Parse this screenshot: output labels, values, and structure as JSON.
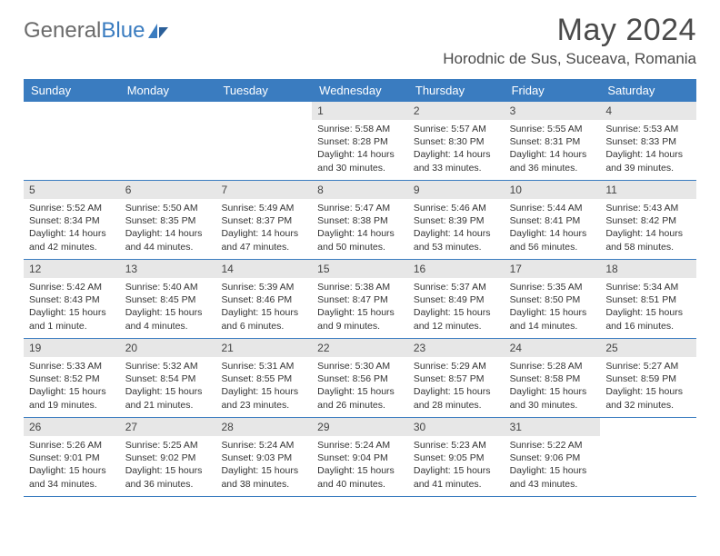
{
  "brand": {
    "part1": "General",
    "part2": "Blue"
  },
  "title": "May 2024",
  "location": "Horodnic de Sus, Suceava, Romania",
  "colors": {
    "header_bg": "#3a7cc0",
    "header_text": "#ffffff",
    "daynum_bg": "#e7e7e7",
    "body_text": "#333333",
    "title_text": "#4a4a4a",
    "week_border": "#3a7cc0",
    "page_bg": "#ffffff"
  },
  "weekdays": [
    "Sunday",
    "Monday",
    "Tuesday",
    "Wednesday",
    "Thursday",
    "Friday",
    "Saturday"
  ],
  "weeks": [
    [
      {
        "day": "",
        "sunrise": "",
        "sunset": "",
        "daylight": ""
      },
      {
        "day": "",
        "sunrise": "",
        "sunset": "",
        "daylight": ""
      },
      {
        "day": "",
        "sunrise": "",
        "sunset": "",
        "daylight": ""
      },
      {
        "day": "1",
        "sunrise": "Sunrise: 5:58 AM",
        "sunset": "Sunset: 8:28 PM",
        "daylight": "Daylight: 14 hours and 30 minutes."
      },
      {
        "day": "2",
        "sunrise": "Sunrise: 5:57 AM",
        "sunset": "Sunset: 8:30 PM",
        "daylight": "Daylight: 14 hours and 33 minutes."
      },
      {
        "day": "3",
        "sunrise": "Sunrise: 5:55 AM",
        "sunset": "Sunset: 8:31 PM",
        "daylight": "Daylight: 14 hours and 36 minutes."
      },
      {
        "day": "4",
        "sunrise": "Sunrise: 5:53 AM",
        "sunset": "Sunset: 8:33 PM",
        "daylight": "Daylight: 14 hours and 39 minutes."
      }
    ],
    [
      {
        "day": "5",
        "sunrise": "Sunrise: 5:52 AM",
        "sunset": "Sunset: 8:34 PM",
        "daylight": "Daylight: 14 hours and 42 minutes."
      },
      {
        "day": "6",
        "sunrise": "Sunrise: 5:50 AM",
        "sunset": "Sunset: 8:35 PM",
        "daylight": "Daylight: 14 hours and 44 minutes."
      },
      {
        "day": "7",
        "sunrise": "Sunrise: 5:49 AM",
        "sunset": "Sunset: 8:37 PM",
        "daylight": "Daylight: 14 hours and 47 minutes."
      },
      {
        "day": "8",
        "sunrise": "Sunrise: 5:47 AM",
        "sunset": "Sunset: 8:38 PM",
        "daylight": "Daylight: 14 hours and 50 minutes."
      },
      {
        "day": "9",
        "sunrise": "Sunrise: 5:46 AM",
        "sunset": "Sunset: 8:39 PM",
        "daylight": "Daylight: 14 hours and 53 minutes."
      },
      {
        "day": "10",
        "sunrise": "Sunrise: 5:44 AM",
        "sunset": "Sunset: 8:41 PM",
        "daylight": "Daylight: 14 hours and 56 minutes."
      },
      {
        "day": "11",
        "sunrise": "Sunrise: 5:43 AM",
        "sunset": "Sunset: 8:42 PM",
        "daylight": "Daylight: 14 hours and 58 minutes."
      }
    ],
    [
      {
        "day": "12",
        "sunrise": "Sunrise: 5:42 AM",
        "sunset": "Sunset: 8:43 PM",
        "daylight": "Daylight: 15 hours and 1 minute."
      },
      {
        "day": "13",
        "sunrise": "Sunrise: 5:40 AM",
        "sunset": "Sunset: 8:45 PM",
        "daylight": "Daylight: 15 hours and 4 minutes."
      },
      {
        "day": "14",
        "sunrise": "Sunrise: 5:39 AM",
        "sunset": "Sunset: 8:46 PM",
        "daylight": "Daylight: 15 hours and 6 minutes."
      },
      {
        "day": "15",
        "sunrise": "Sunrise: 5:38 AM",
        "sunset": "Sunset: 8:47 PM",
        "daylight": "Daylight: 15 hours and 9 minutes."
      },
      {
        "day": "16",
        "sunrise": "Sunrise: 5:37 AM",
        "sunset": "Sunset: 8:49 PM",
        "daylight": "Daylight: 15 hours and 12 minutes."
      },
      {
        "day": "17",
        "sunrise": "Sunrise: 5:35 AM",
        "sunset": "Sunset: 8:50 PM",
        "daylight": "Daylight: 15 hours and 14 minutes."
      },
      {
        "day": "18",
        "sunrise": "Sunrise: 5:34 AM",
        "sunset": "Sunset: 8:51 PM",
        "daylight": "Daylight: 15 hours and 16 minutes."
      }
    ],
    [
      {
        "day": "19",
        "sunrise": "Sunrise: 5:33 AM",
        "sunset": "Sunset: 8:52 PM",
        "daylight": "Daylight: 15 hours and 19 minutes."
      },
      {
        "day": "20",
        "sunrise": "Sunrise: 5:32 AM",
        "sunset": "Sunset: 8:54 PM",
        "daylight": "Daylight: 15 hours and 21 minutes."
      },
      {
        "day": "21",
        "sunrise": "Sunrise: 5:31 AM",
        "sunset": "Sunset: 8:55 PM",
        "daylight": "Daylight: 15 hours and 23 minutes."
      },
      {
        "day": "22",
        "sunrise": "Sunrise: 5:30 AM",
        "sunset": "Sunset: 8:56 PM",
        "daylight": "Daylight: 15 hours and 26 minutes."
      },
      {
        "day": "23",
        "sunrise": "Sunrise: 5:29 AM",
        "sunset": "Sunset: 8:57 PM",
        "daylight": "Daylight: 15 hours and 28 minutes."
      },
      {
        "day": "24",
        "sunrise": "Sunrise: 5:28 AM",
        "sunset": "Sunset: 8:58 PM",
        "daylight": "Daylight: 15 hours and 30 minutes."
      },
      {
        "day": "25",
        "sunrise": "Sunrise: 5:27 AM",
        "sunset": "Sunset: 8:59 PM",
        "daylight": "Daylight: 15 hours and 32 minutes."
      }
    ],
    [
      {
        "day": "26",
        "sunrise": "Sunrise: 5:26 AM",
        "sunset": "Sunset: 9:01 PM",
        "daylight": "Daylight: 15 hours and 34 minutes."
      },
      {
        "day": "27",
        "sunrise": "Sunrise: 5:25 AM",
        "sunset": "Sunset: 9:02 PM",
        "daylight": "Daylight: 15 hours and 36 minutes."
      },
      {
        "day": "28",
        "sunrise": "Sunrise: 5:24 AM",
        "sunset": "Sunset: 9:03 PM",
        "daylight": "Daylight: 15 hours and 38 minutes."
      },
      {
        "day": "29",
        "sunrise": "Sunrise: 5:24 AM",
        "sunset": "Sunset: 9:04 PM",
        "daylight": "Daylight: 15 hours and 40 minutes."
      },
      {
        "day": "30",
        "sunrise": "Sunrise: 5:23 AM",
        "sunset": "Sunset: 9:05 PM",
        "daylight": "Daylight: 15 hours and 41 minutes."
      },
      {
        "day": "31",
        "sunrise": "Sunrise: 5:22 AM",
        "sunset": "Sunset: 9:06 PM",
        "daylight": "Daylight: 15 hours and 43 minutes."
      },
      {
        "day": "",
        "sunrise": "",
        "sunset": "",
        "daylight": ""
      }
    ]
  ]
}
